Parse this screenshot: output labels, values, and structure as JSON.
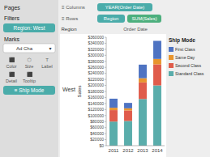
{
  "chart_data": {
    "type": "bar",
    "stacked": true,
    "title": "Order Date",
    "ylabel": "Sales",
    "categories": [
      "2011",
      "2012",
      "2013",
      "2014"
    ],
    "series": [
      {
        "name": "Standard Class",
        "color": "#5aadab",
        "values": [
          80000,
          82000,
          155000,
          200000
        ]
      },
      {
        "name": "Second Class",
        "color": "#e05c4b",
        "values": [
          38000,
          35000,
          55000,
          70000
        ]
      },
      {
        "name": "Same Day",
        "color": "#e8952e",
        "values": [
          8000,
          7000,
          14000,
          18000
        ]
      },
      {
        "name": "First Class",
        "color": "#4e73c2",
        "values": [
          30000,
          18000,
          45000,
          60000
        ]
      }
    ],
    "ylim": [
      0,
      360000
    ],
    "yticks": [
      {
        "value": 0,
        "label": "$0"
      },
      {
        "value": 20000,
        "label": "$20000"
      },
      {
        "value": 40000,
        "label": "$40000"
      },
      {
        "value": 60000,
        "label": "$60000"
      },
      {
        "value": 80000,
        "label": "$80000"
      },
      {
        "value": 100000,
        "label": "$100000"
      },
      {
        "value": 120000,
        "label": "$120000"
      },
      {
        "value": 140000,
        "label": "$140000"
      },
      {
        "value": 160000,
        "label": "$160000"
      },
      {
        "value": 180000,
        "label": "$180000"
      },
      {
        "value": 200000,
        "label": "$200000"
      },
      {
        "value": 220000,
        "label": "$220000"
      },
      {
        "value": 240000,
        "label": "$240000"
      },
      {
        "value": 260000,
        "label": "$260000"
      },
      {
        "value": 280000,
        "label": "$280000"
      },
      {
        "value": 300000,
        "label": "$300000"
      },
      {
        "value": 320000,
        "label": "$320000"
      },
      {
        "value": 340000,
        "label": "$340000"
      },
      {
        "value": 360000,
        "label": "$360000"
      }
    ],
    "grid": false,
    "legend": "right",
    "annotations": [
      "Pages",
      "Filters",
      "Region: West",
      "Marks",
      "Ad Cha",
      "▾",
      "⬛",
      "⬡",
      "T",
      "Color",
      "Size",
      "Label",
      "⬛",
      "⬛",
      "Detail",
      "Tooltip",
      "≡ Ship Mode",
      "≡ Columns",
      "YEAR(Order Date)",
      "≡ Rows",
      "Region",
      "SUM(Sales)",
      "Region",
      "West",
      "Ship Mode"
    ]
  }
}
